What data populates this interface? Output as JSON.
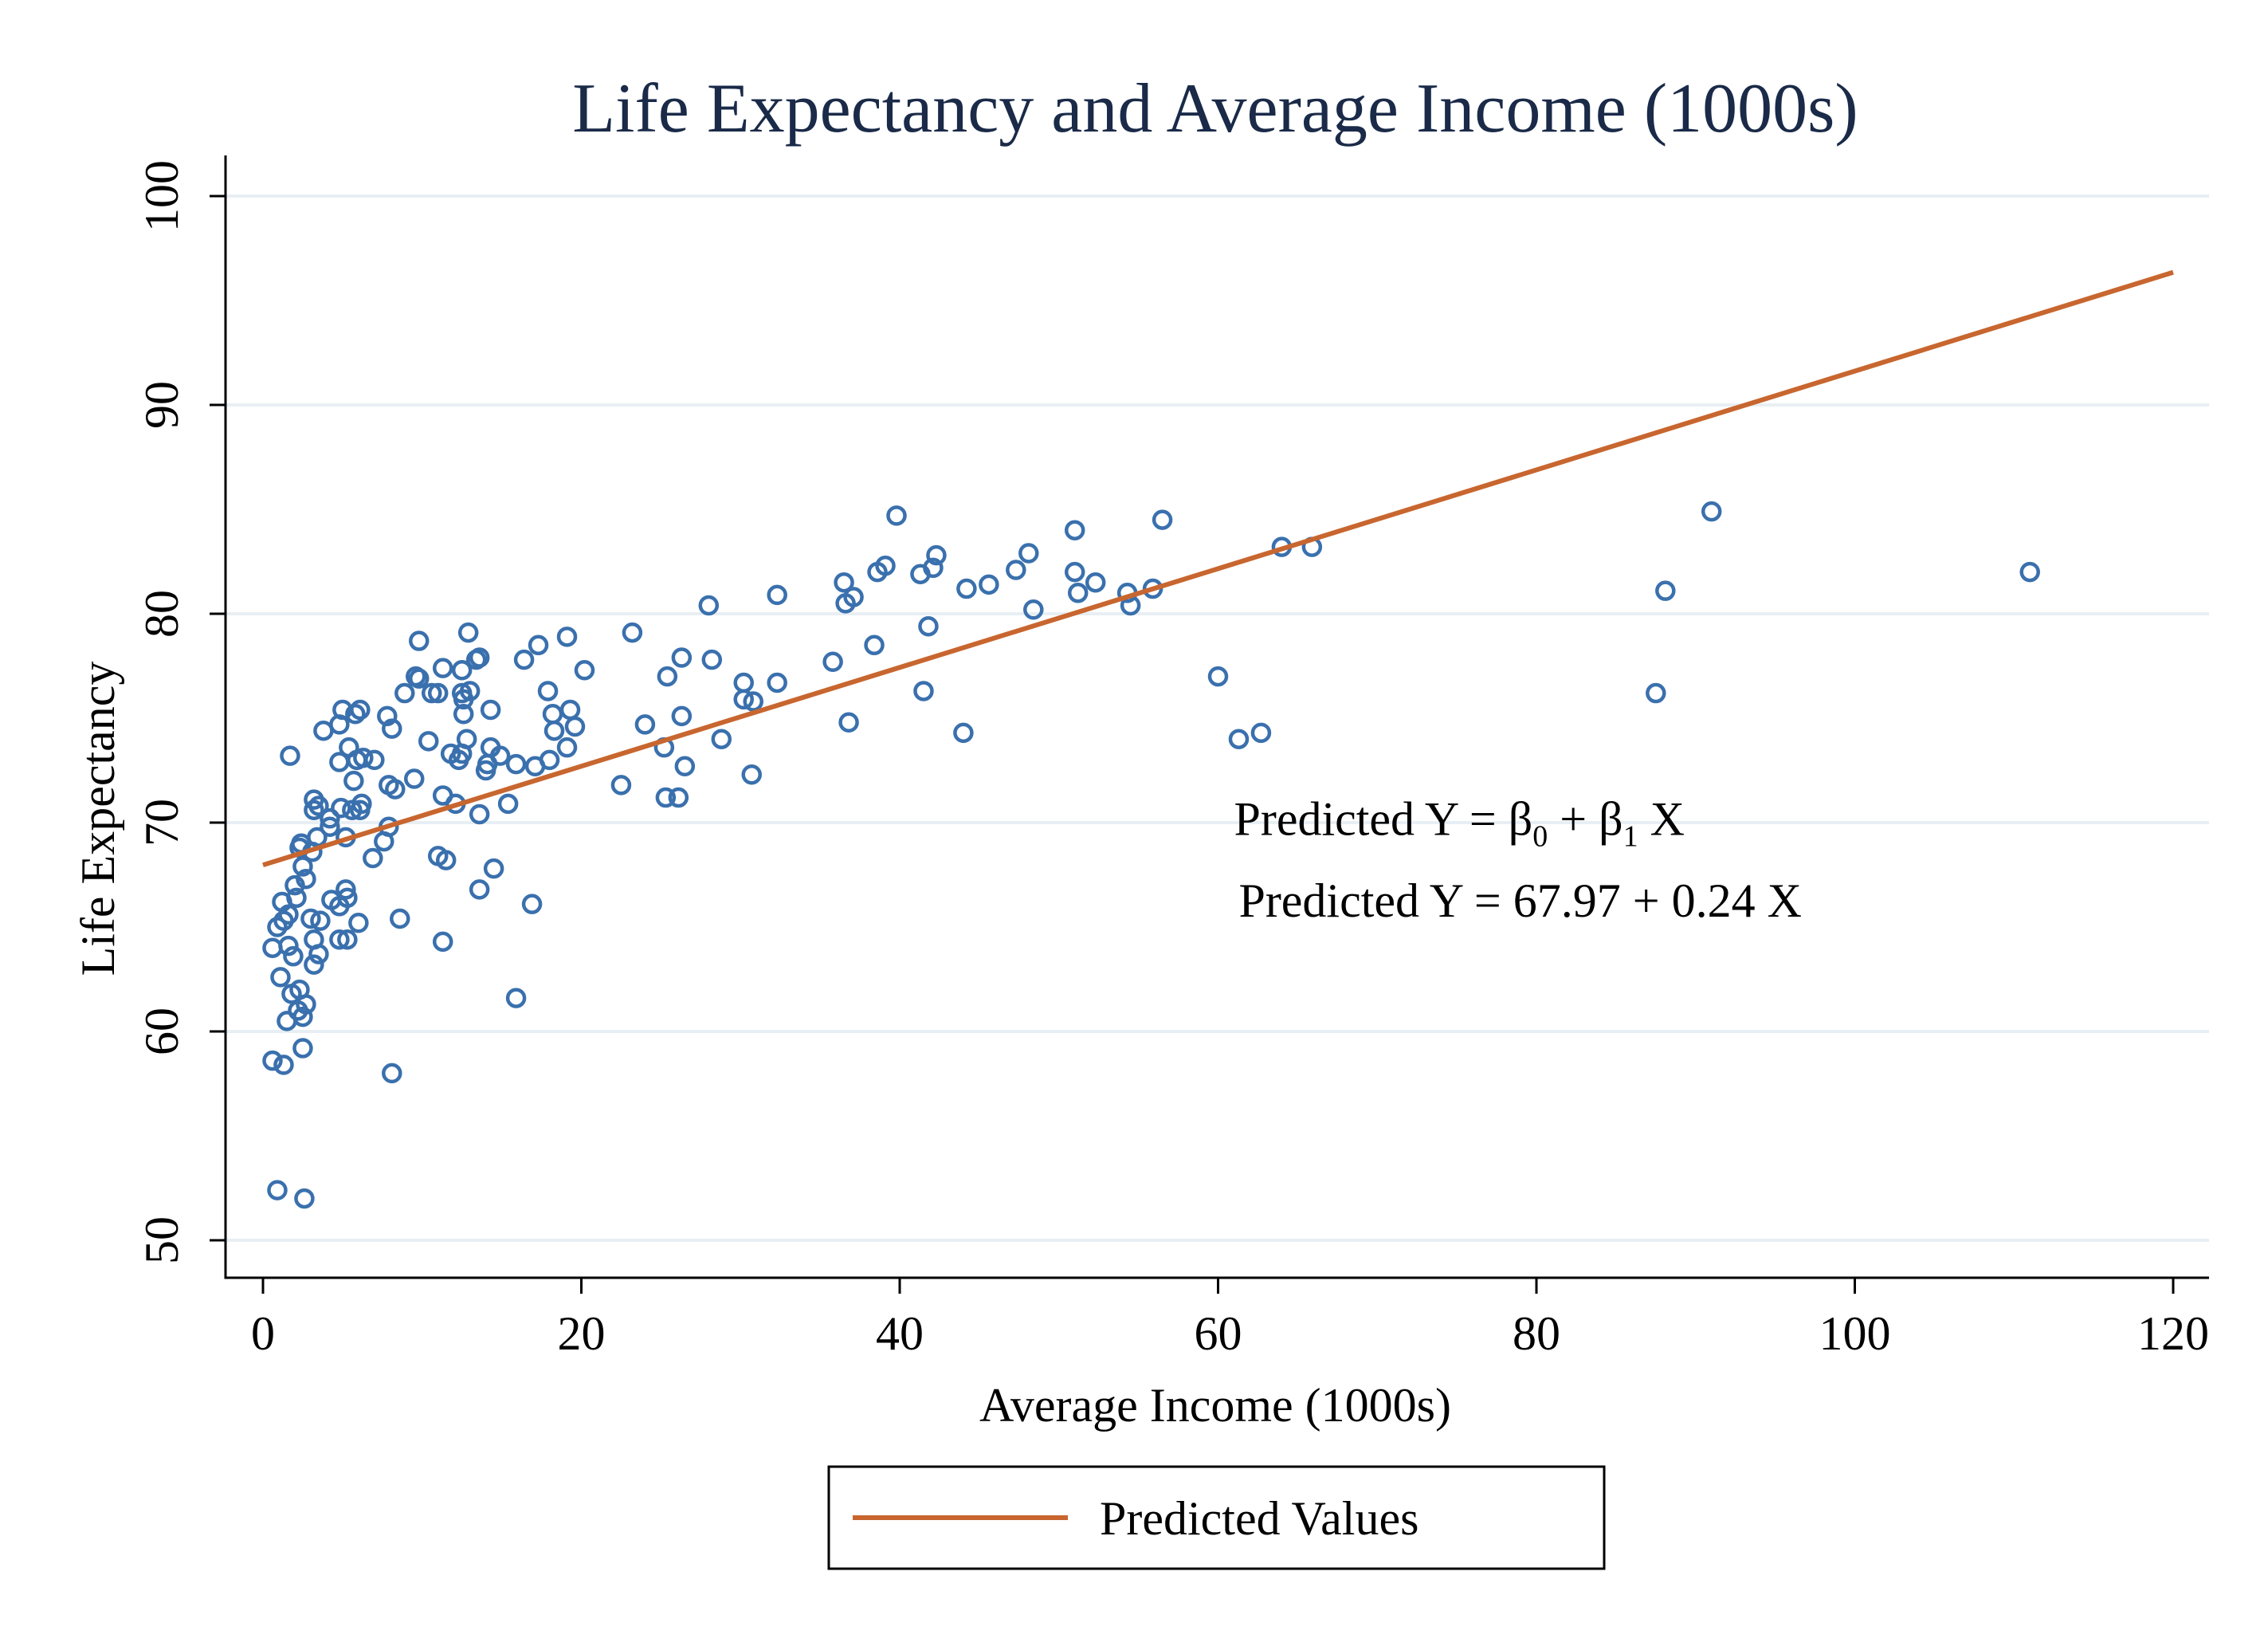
{
  "chart_data": {
    "type": "scatter",
    "title": "Life Expectancy and Average Income (1000s)",
    "xlabel": "Average Income (1000s)",
    "ylabel": "Life Expectancy",
    "xlim": [
      0,
      120
    ],
    "ylim": [
      50,
      100
    ],
    "xticks": [
      "0",
      "20",
      "40",
      "60",
      "80",
      "100",
      "120"
    ],
    "yticks": [
      "50",
      "60",
      "70",
      "80",
      "90",
      "100"
    ],
    "grid": true,
    "legend_position": "bottom",
    "colors": {
      "points": "#3a70ad",
      "fit_line": "#c8662f",
      "grid": "#e8eff4",
      "background": "#ffffff"
    },
    "scatter_points": [
      [
        0.9,
        52.4
      ],
      [
        2.6,
        52.0
      ],
      [
        8.1,
        58.0
      ],
      [
        0.6,
        58.6
      ],
      [
        1.3,
        58.4
      ],
      [
        2.5,
        59.2
      ],
      [
        1.5,
        60.5
      ],
      [
        2.5,
        60.7
      ],
      [
        2.2,
        61.0
      ],
      [
        1.8,
        61.8
      ],
      [
        2.3,
        62.0
      ],
      [
        2.7,
        61.3
      ],
      [
        1.1,
        62.6
      ],
      [
        15.9,
        61.6
      ],
      [
        3.2,
        63.2
      ],
      [
        3.5,
        63.7
      ],
      [
        1.9,
        63.6
      ],
      [
        0.6,
        64.0
      ],
      [
        1.6,
        64.1
      ],
      [
        3.2,
        64.4
      ],
      [
        4.8,
        64.4
      ],
      [
        5.3,
        64.4
      ],
      [
        11.3,
        64.3
      ],
      [
        0.9,
        65.0
      ],
      [
        1.3,
        65.3
      ],
      [
        1.6,
        65.6
      ],
      [
        3.0,
        65.4
      ],
      [
        3.6,
        65.3
      ],
      [
        6.0,
        65.2
      ],
      [
        8.6,
        65.4
      ],
      [
        1.2,
        66.2
      ],
      [
        2.1,
        66.4
      ],
      [
        4.3,
        66.3
      ],
      [
        5.3,
        66.4
      ],
      [
        4.8,
        66.0
      ],
      [
        13.6,
        66.8
      ],
      [
        16.9,
        66.1
      ],
      [
        2.0,
        67.0
      ],
      [
        2.7,
        67.3
      ],
      [
        5.2,
        66.8
      ],
      [
        14.5,
        67.8
      ],
      [
        2.5,
        67.9
      ],
      [
        6.9,
        68.3
      ],
      [
        11.0,
        68.4
      ],
      [
        11.5,
        68.2
      ],
      [
        2.3,
        68.8
      ],
      [
        2.4,
        69.0
      ],
      [
        3.1,
        68.6
      ],
      [
        3.4,
        69.3
      ],
      [
        4.2,
        69.8
      ],
      [
        5.2,
        69.3
      ],
      [
        7.6,
        69.1
      ],
      [
        7.9,
        69.8
      ],
      [
        13.6,
        70.4
      ],
      [
        15.4,
        70.9
      ],
      [
        3.2,
        70.6
      ],
      [
        3.5,
        70.8
      ],
      [
        4.2,
        70.2
      ],
      [
        4.9,
        70.7
      ],
      [
        5.6,
        70.6
      ],
      [
        6.1,
        70.6
      ],
      [
        6.2,
        70.9
      ],
      [
        12.1,
        70.9
      ],
      [
        11.3,
        71.3
      ],
      [
        3.2,
        71.1
      ],
      [
        5.7,
        72.0
      ],
      [
        7.9,
        71.8
      ],
      [
        8.3,
        71.6
      ],
      [
        9.5,
        72.1
      ],
      [
        22.5,
        71.8
      ],
      [
        25.3,
        71.2
      ],
      [
        26.1,
        71.2
      ],
      [
        30.7,
        72.3
      ],
      [
        14.0,
        72.5
      ],
      [
        14.1,
        72.8
      ],
      [
        17.1,
        72.7
      ],
      [
        15.9,
        72.8
      ],
      [
        26.5,
        72.7
      ],
      [
        1.7,
        73.2
      ],
      [
        4.8,
        72.9
      ],
      [
        5.9,
        73.0
      ],
      [
        6.3,
        73.1
      ],
      [
        7.0,
        73.0
      ],
      [
        10.4,
        73.9
      ],
      [
        11.8,
        73.3
      ],
      [
        12.3,
        73.0
      ],
      [
        12.5,
        73.3
      ],
      [
        14.3,
        73.6
      ],
      [
        14.9,
        73.2
      ],
      [
        18.0,
        73.0
      ],
      [
        19.1,
        73.6
      ],
      [
        25.2,
        73.6
      ],
      [
        28.8,
        74.0
      ],
      [
        44.0,
        74.3
      ],
      [
        62.7,
        74.3
      ],
      [
        61.3,
        74.0
      ],
      [
        3.8,
        74.4
      ],
      [
        4.8,
        74.7
      ],
      [
        5.4,
        73.6
      ],
      [
        8.1,
        74.5
      ],
      [
        12.8,
        74.0
      ],
      [
        18.3,
        74.4
      ],
      [
        19.6,
        74.6
      ],
      [
        24.0,
        74.7
      ],
      [
        26.3,
        75.1
      ],
      [
        30.2,
        75.9
      ],
      [
        30.8,
        75.8
      ],
      [
        36.8,
        74.8
      ],
      [
        87.5,
        76.2
      ],
      [
        5.0,
        75.4
      ],
      [
        5.8,
        75.2
      ],
      [
        6.1,
        75.4
      ],
      [
        7.8,
        75.1
      ],
      [
        12.6,
        75.2
      ],
      [
        14.3,
        75.4
      ],
      [
        18.2,
        75.2
      ],
      [
        19.3,
        75.4
      ],
      [
        12.6,
        75.9
      ],
      [
        10.6,
        76.2
      ],
      [
        11.0,
        76.2
      ],
      [
        12.5,
        76.2
      ],
      [
        13.0,
        76.3
      ],
      [
        17.9,
        76.3
      ],
      [
        8.9,
        76.2
      ],
      [
        9.6,
        77.0
      ],
      [
        9.8,
        76.9
      ],
      [
        11.3,
        77.4
      ],
      [
        12.5,
        77.3
      ],
      [
        13.4,
        77.8
      ],
      [
        13.6,
        77.9
      ],
      [
        16.4,
        77.8
      ],
      [
        20.2,
        77.3
      ],
      [
        25.4,
        77.0
      ],
      [
        26.3,
        77.9
      ],
      [
        28.2,
        77.8
      ],
      [
        30.2,
        76.7
      ],
      [
        32.3,
        76.7
      ],
      [
        35.8,
        77.7
      ],
      [
        41.5,
        76.3
      ],
      [
        60.0,
        77.0
      ],
      [
        9.8,
        78.7
      ],
      [
        12.9,
        79.1
      ],
      [
        17.3,
        78.5
      ],
      [
        19.1,
        78.9
      ],
      [
        23.2,
        79.1
      ],
      [
        38.4,
        78.5
      ],
      [
        41.8,
        79.4
      ],
      [
        28.0,
        80.4
      ],
      [
        32.3,
        80.9
      ],
      [
        36.6,
        80.5
      ],
      [
        37.1,
        80.8
      ],
      [
        36.5,
        81.5
      ],
      [
        38.6,
        82.0
      ],
      [
        39.1,
        82.3
      ],
      [
        41.3,
        81.9
      ],
      [
        42.1,
        82.2
      ],
      [
        42.3,
        82.8
      ],
      [
        44.2,
        81.2
      ],
      [
        45.6,
        81.4
      ],
      [
        47.3,
        82.1
      ],
      [
        48.1,
        82.9
      ],
      [
        48.4,
        80.2
      ],
      [
        51.0,
        84.0
      ],
      [
        51.0,
        82.0
      ],
      [
        51.2,
        81.0
      ],
      [
        52.3,
        81.5
      ],
      [
        54.3,
        81.0
      ],
      [
        54.5,
        80.4
      ],
      [
        55.9,
        81.2
      ],
      [
        56.5,
        84.5
      ],
      [
        39.8,
        84.7
      ],
      [
        64.0,
        83.2
      ],
      [
        65.9,
        83.2
      ],
      [
        88.1,
        81.1
      ],
      [
        91.0,
        84.9
      ],
      [
        111.0,
        82.0
      ]
    ],
    "fit_line": {
      "x": [
        0,
        120
      ],
      "y": [
        67.97,
        96.35
      ]
    },
    "annotations": [
      {
        "prefix": "Predicted Y = β",
        "sub0": "0",
        "mid": " + β",
        "sub1": "1",
        "suffix": " X",
        "x": 61,
        "y": 69.4
      },
      {
        "text": "Predicted Y = 67.97 + 0.24 X",
        "x": 61.3,
        "y": 65.5
      }
    ],
    "series": [
      {
        "name": "Predicted Values",
        "kind": "line"
      }
    ]
  }
}
